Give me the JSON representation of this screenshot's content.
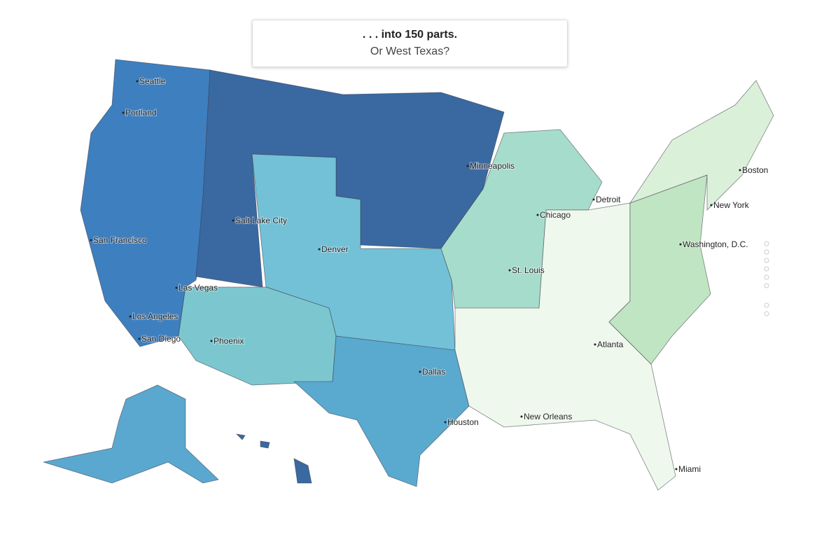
{
  "caption": {
    "title": ". . . into 150 parts.",
    "subtitle": "Or West Texas?"
  },
  "cities": [
    "Seattle",
    "Portland",
    "Minneapolis",
    "Boston",
    "Detroit",
    "Chicago",
    "New York",
    "Salt Lake City",
    "San Francisco",
    "Denver",
    "Washington, D.C.",
    "St. Louis",
    "Las Vegas",
    "Los Angeles",
    "San Diego",
    "Phoenix",
    "Atlanta",
    "Dallas",
    "Houston",
    "New Orleans",
    "Miami"
  ]
}
